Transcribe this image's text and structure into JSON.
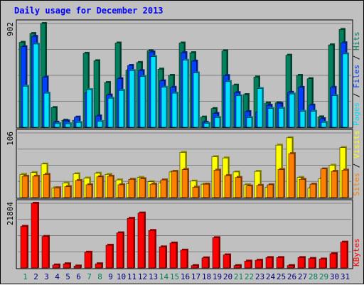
{
  "title": "Daily usage for December 2013",
  "colors": {
    "hits": "#00805c",
    "files": "#0040ff",
    "pages": "#00e0ff",
    "visits": "#ffff00",
    "sites": "#ff8000",
    "kbytes": "#ff0000",
    "weekend_day": "#00805c",
    "weekday": "#000080"
  },
  "chart_data": [
    {
      "type": "bar",
      "name_top_label": "902",
      "legend": [
        {
          "text": "Pages",
          "color": "#00e0ff"
        },
        {
          "text": " / ",
          "color": "#000000"
        },
        {
          "text": "Files",
          "color": "#0040ff"
        },
        {
          "text": " / ",
          "color": "#000000"
        },
        {
          "text": "Hits",
          "color": "#00805c"
        }
      ],
      "ylim": [
        0,
        902
      ],
      "x": [
        1,
        2,
        3,
        4,
        5,
        6,
        7,
        8,
        9,
        10,
        11,
        12,
        13,
        14,
        15,
        16,
        17,
        18,
        19,
        20,
        21,
        22,
        23,
        24,
        25,
        26,
        27,
        28,
        29,
        30,
        31
      ],
      "series": [
        {
          "name": "Hits",
          "values": [
            738,
            815,
            902,
            171,
            61,
            61,
            643,
            578,
            389,
            732,
            496,
            563,
            665,
            505,
            451,
            732,
            648,
            88,
            162,
            664,
            366,
            284,
            436,
            210,
            212,
            626,
            451,
            422,
            90,
            716,
            850
          ]
        },
        {
          "name": "Files",
          "values": [
            700,
            790,
            435,
            44,
            55,
            88,
            301,
            98,
            280,
            422,
            537,
            492,
            654,
            403,
            347,
            648,
            575,
            44,
            120,
            449,
            301,
            136,
            131,
            191,
            207,
            304,
            347,
            192,
            74,
            347,
            734
          ]
        },
        {
          "name": "Pages",
          "values": [
            356,
            723,
            296,
            31,
            30,
            41,
            327,
            50,
            252,
            320,
            492,
            441,
            613,
            347,
            296,
            582,
            472,
            33,
            84,
            396,
            273,
            83,
            336,
            163,
            165,
            289,
            138,
            138,
            42,
            274,
            637
          ]
        }
      ]
    },
    {
      "type": "bar",
      "name_top_label": "106",
      "legend": [
        {
          "text": "Sites",
          "color": "#ff8000"
        },
        {
          "text": " / ",
          "color": "#000000"
        },
        {
          "text": "Visits",
          "color": "#ffff00"
        }
      ],
      "ylim": [
        0,
        106
      ],
      "x": [
        1,
        2,
        3,
        4,
        5,
        6,
        7,
        8,
        9,
        10,
        11,
        12,
        13,
        14,
        15,
        16,
        17,
        18,
        19,
        20,
        21,
        22,
        23,
        24,
        25,
        26,
        27,
        28,
        29,
        30,
        31
      ],
      "series": [
        {
          "name": "Visits",
          "values": [
            38,
            41,
            55,
            16,
            24,
            39,
            32,
            40,
            38,
            29,
            23,
            33,
            26,
            24,
            42,
            74,
            27,
            22,
            67,
            65,
            42,
            21,
            43,
            17,
            86,
            98,
            33,
            16,
            31,
            53,
            82
          ]
        },
        {
          "name": "Sites",
          "values": [
            35,
            35,
            38,
            16,
            18,
            28,
            21,
            34,
            35,
            21,
            30,
            31,
            22,
            29,
            43,
            46,
            17,
            22,
            45,
            36,
            33,
            19,
            20,
            21,
            46,
            72,
            30,
            22,
            47,
            43,
            45
          ]
        }
      ]
    },
    {
      "type": "bar",
      "name_top_label": "21804",
      "legend": [
        {
          "text": "KBytes",
          "color": "#ff0000"
        }
      ],
      "ylim": [
        0,
        21804
      ],
      "x": [
        1,
        2,
        3,
        4,
        5,
        6,
        7,
        8,
        9,
        10,
        11,
        12,
        13,
        14,
        15,
        16,
        17,
        18,
        19,
        20,
        21,
        22,
        23,
        24,
        25,
        26,
        27,
        28,
        29,
        30,
        31
      ],
      "series": [
        {
          "name": "KBytes",
          "values": [
            14024,
            21804,
            10622,
            1000,
            1400,
            642,
            5306,
            1400,
            7654,
            11834,
            16724,
            18516,
            12632,
            7100,
            8400,
            6012,
            800,
            3400,
            10200,
            4400,
            800,
            2300,
            2600,
            3500,
            3500,
            800,
            3500,
            3200,
            3000,
            4800,
            8700
          ]
        }
      ]
    }
  ],
  "x_labels": [
    "1",
    "2",
    "3",
    "4",
    "5",
    "6",
    "7",
    "8",
    "9",
    "10",
    "11",
    "12",
    "13",
    "14",
    "15",
    "16",
    "17",
    "18",
    "19",
    "20",
    "21",
    "22",
    "23",
    "24",
    "25",
    "26",
    "27",
    "28",
    "29",
    "30",
    "31"
  ],
  "weekend_days": [
    1,
    7,
    8,
    14,
    15,
    21,
    22,
    28,
    29
  ]
}
